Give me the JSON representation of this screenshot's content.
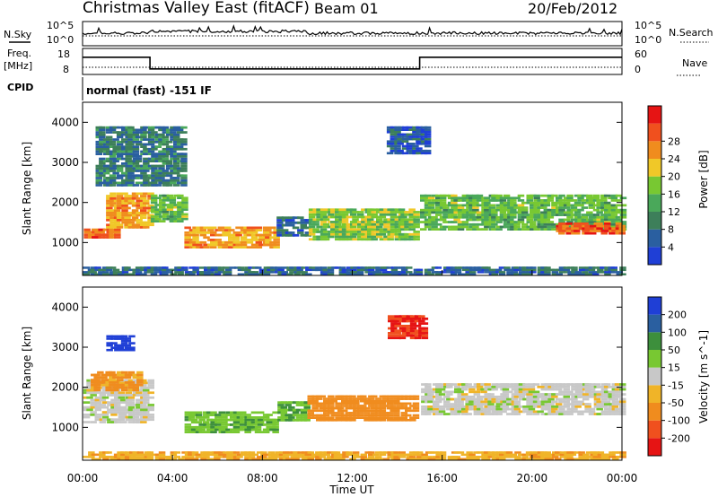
{
  "header": {
    "station": "Christmas Valley East (fitACF)",
    "beam": "Beam 01",
    "date": "20/Feb/2012"
  },
  "status_panels": {
    "nsky_label": "N.Sky",
    "nsky_ticks": [
      "10^5",
      "10^0"
    ],
    "nsearch_label": "N.Search",
    "nsearch_ticks": [
      "10^5",
      "10^0"
    ],
    "freq_label_1": "Freq.",
    "freq_label_2": "[MHz]",
    "freq_ticks": [
      "18",
      "8"
    ],
    "nave_label": "Nave",
    "nave_ticks": [
      "60",
      "0"
    ],
    "cpid_label": "CPID",
    "cpid_text": "normal (fast) -151 IF",
    "freq_steps": [
      [
        0,
        3.0,
        15
      ],
      [
        3.0,
        15.0,
        10
      ],
      [
        15.0,
        24,
        15
      ]
    ]
  },
  "colors": {
    "power": [
      "#1f3fd6",
      "#2a5fa0",
      "#3d7f5a",
      "#4aa85a",
      "#78c832",
      "#f0c828",
      "#f08c1e",
      "#f0501e",
      "#e61414"
    ],
    "velocity": [
      "#e61414",
      "#f0501e",
      "#f08c1e",
      "#f0b428",
      "#c8c8c8",
      "#78c832",
      "#3d8f3c",
      "#2a5fa0",
      "#1f3fd6"
    ]
  },
  "chart_data": [
    {
      "type": "heatmap",
      "name": "power",
      "ylabel": "Slant Range [km]",
      "xlabel": "Time UT",
      "xticks": [
        "00:00",
        "04:00",
        "08:00",
        "12:00",
        "16:00",
        "20:00",
        "00:00"
      ],
      "yticks": [
        "1000",
        "2000",
        "3000",
        "4000"
      ],
      "colorbar_label": "Power [dB]",
      "colorbar_ticks": [
        "4",
        "8",
        "12",
        "16",
        "20",
        "24",
        "28"
      ],
      "xlim": [
        0,
        24
      ],
      "ylim": [
        180,
        4500
      ],
      "colorbar_range": [
        0,
        32
      ],
      "features": [
        {
          "t": [
            0.0,
            1.5
          ],
          "r": [
            1100,
            1350
          ],
          "level": 26
        },
        {
          "t": [
            1.0,
            3.0
          ],
          "r": [
            1350,
            2250
          ],
          "level": 22
        },
        {
          "t": [
            3.0,
            4.5
          ],
          "r": [
            1500,
            2200
          ],
          "level": 14
        },
        {
          "t": [
            4.5,
            8.6
          ],
          "r": [
            850,
            1400
          ],
          "level": 22
        },
        {
          "t": [
            0.5,
            4.5
          ],
          "r": [
            2400,
            3900
          ],
          "level": 8
        },
        {
          "t": [
            8.6,
            10.0
          ],
          "r": [
            1150,
            1650
          ],
          "level": 6
        },
        {
          "t": [
            10.0,
            14.8
          ],
          "r": [
            1050,
            1850
          ],
          "level": 16
        },
        {
          "t": [
            13.5,
            15.3
          ],
          "r": [
            3200,
            3900
          ],
          "level": 5
        },
        {
          "t": [
            15.0,
            24.0
          ],
          "r": [
            1300,
            2200
          ],
          "level": 14
        },
        {
          "t": [
            21.0,
            24.0
          ],
          "r": [
            1200,
            1500
          ],
          "level": 26
        },
        {
          "t": [
            0.0,
            24.0
          ],
          "r": [
            180,
            400
          ],
          "level": 6
        }
      ]
    },
    {
      "type": "heatmap",
      "name": "velocity",
      "ylabel": "Slant Range [km]",
      "xlabel": "Time UT",
      "xticks": [
        "00:00",
        "04:00",
        "08:00",
        "12:00",
        "16:00",
        "20:00",
        "00:00"
      ],
      "yticks": [
        "1000",
        "2000",
        "3000",
        "4000"
      ],
      "colorbar_label": "Velocity [m s^-1]",
      "colorbar_ticks": [
        "200",
        "100",
        "50",
        "15",
        "-15",
        "-50",
        "-100",
        "-200"
      ],
      "xlim": [
        0,
        24
      ],
      "ylim": [
        180,
        4500
      ],
      "features": [
        {
          "t": [
            0.0,
            3.0
          ],
          "r": [
            1100,
            2200
          ],
          "vel": 0
        },
        {
          "t": [
            0.3,
            2.5
          ],
          "r": [
            1900,
            2400
          ],
          "vel": -60
        },
        {
          "t": [
            1.0,
            2.2
          ],
          "r": [
            2900,
            3300
          ],
          "vel": 220
        },
        {
          "t": [
            4.5,
            8.6
          ],
          "r": [
            850,
            1400
          ],
          "vel": 40
        },
        {
          "t": [
            8.6,
            10.0
          ],
          "r": [
            1150,
            1650
          ],
          "vel": 40
        },
        {
          "t": [
            10.0,
            14.8
          ],
          "r": [
            1150,
            1800
          ],
          "vel": -80
        },
        {
          "t": [
            13.5,
            15.2
          ],
          "r": [
            3200,
            3800
          ],
          "vel": -200
        },
        {
          "t": [
            15.0,
            24.0
          ],
          "r": [
            1300,
            2100
          ],
          "vel": 0
        },
        {
          "t": [
            0.0,
            24.0
          ],
          "r": [
            180,
            400
          ],
          "vel": -40
        }
      ]
    }
  ]
}
